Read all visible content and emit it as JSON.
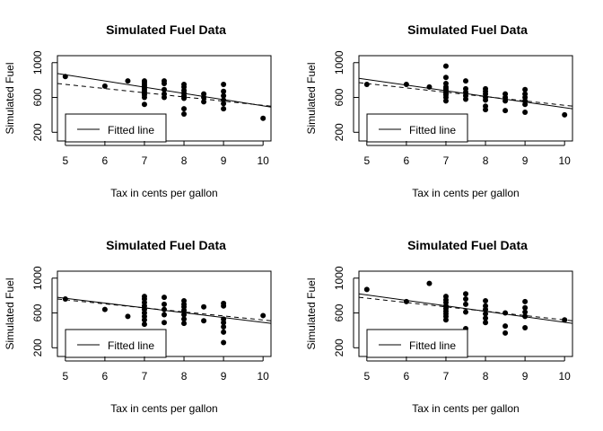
{
  "panels": [
    {
      "chart_data": {
        "type": "scatter",
        "title": "Simulated Fuel Data",
        "xlabel": "Tax in cents per gallon",
        "ylabel": "Simulated Fuel",
        "xlim": [
          4.8,
          10.2
        ],
        "ylim": [
          100,
          1080
        ],
        "xticks": [
          5,
          6,
          7,
          8,
          9,
          10
        ],
        "yticks": [
          200,
          600,
          1000
        ],
        "points": [
          [
            5,
            840
          ],
          [
            6,
            730
          ],
          [
            6.58,
            790
          ],
          [
            7,
            520
          ],
          [
            7,
            600
          ],
          [
            7,
            630
          ],
          [
            7,
            650
          ],
          [
            7,
            670
          ],
          [
            7,
            690
          ],
          [
            7,
            710
          ],
          [
            7,
            730
          ],
          [
            7,
            750
          ],
          [
            7,
            770
          ],
          [
            7,
            790
          ],
          [
            7.5,
            600
          ],
          [
            7.5,
            640
          ],
          [
            7.5,
            690
          ],
          [
            7.5,
            760
          ],
          [
            7.5,
            790
          ],
          [
            8,
            410
          ],
          [
            8,
            470
          ],
          [
            8,
            590
          ],
          [
            8,
            620
          ],
          [
            8,
            650
          ],
          [
            8,
            680
          ],
          [
            8,
            720
          ],
          [
            8,
            750
          ],
          [
            8.5,
            550
          ],
          [
            8.5,
            600
          ],
          [
            8.5,
            640
          ],
          [
            9,
            470
          ],
          [
            9,
            530
          ],
          [
            9,
            570
          ],
          [
            9,
            620
          ],
          [
            9,
            670
          ],
          [
            9,
            750
          ],
          [
            10,
            360
          ]
        ],
        "fitted_line": [
          [
            4.8,
            875
          ],
          [
            10.2,
            490
          ]
        ],
        "dashed_line": [
          [
            4.8,
            760
          ],
          [
            10.2,
            500
          ]
        ],
        "legend": {
          "label": "Fitted line",
          "position": "bottom-left"
        }
      }
    },
    {
      "chart_data": {
        "type": "scatter",
        "title": "Simulated Fuel Data",
        "xlabel": "Tax in cents per gallon",
        "ylabel": "Simulated Fuel",
        "xlim": [
          4.8,
          10.2
        ],
        "ylim": [
          100,
          1080
        ],
        "xticks": [
          5,
          6,
          7,
          8,
          9,
          10
        ],
        "yticks": [
          200,
          600,
          1000
        ],
        "points": [
          [
            5,
            750
          ],
          [
            6,
            750
          ],
          [
            6.58,
            720
          ],
          [
            7,
            560
          ],
          [
            7,
            600
          ],
          [
            7,
            630
          ],
          [
            7,
            650
          ],
          [
            7,
            680
          ],
          [
            7,
            700
          ],
          [
            7,
            720
          ],
          [
            7,
            760
          ],
          [
            7,
            830
          ],
          [
            7,
            960
          ],
          [
            7.5,
            580
          ],
          [
            7.5,
            620
          ],
          [
            7.5,
            660
          ],
          [
            7.5,
            700
          ],
          [
            7.5,
            790
          ],
          [
            8,
            460
          ],
          [
            8,
            500
          ],
          [
            8,
            570
          ],
          [
            8,
            600
          ],
          [
            8,
            640
          ],
          [
            8,
            670
          ],
          [
            8,
            700
          ],
          [
            8.5,
            450
          ],
          [
            8.5,
            560
          ],
          [
            8.5,
            600
          ],
          [
            8.5,
            640
          ],
          [
            9,
            430
          ],
          [
            9,
            520
          ],
          [
            9,
            560
          ],
          [
            9,
            600
          ],
          [
            9,
            640
          ],
          [
            9,
            690
          ],
          [
            10,
            400
          ]
        ],
        "fitted_line": [
          [
            4.8,
            820
          ],
          [
            10.2,
            470
          ]
        ],
        "dashed_line": [
          [
            4.8,
            770
          ],
          [
            10.2,
            500
          ]
        ],
        "legend": {
          "label": "Fitted line",
          "position": "bottom-left"
        }
      }
    },
    {
      "chart_data": {
        "type": "scatter",
        "title": "Simulated Fuel Data",
        "xlabel": "Tax in cents per gallon",
        "ylabel": "Simulated Fuel",
        "xlim": [
          4.8,
          10.2
        ],
        "ylim": [
          100,
          1080
        ],
        "xticks": [
          5,
          6,
          7,
          8,
          9,
          10
        ],
        "yticks": [
          200,
          600,
          1000
        ],
        "points": [
          [
            5,
            760
          ],
          [
            6,
            640
          ],
          [
            6.58,
            560
          ],
          [
            7,
            470
          ],
          [
            7,
            520
          ],
          [
            7,
            560
          ],
          [
            7,
            600
          ],
          [
            7,
            640
          ],
          [
            7,
            680
          ],
          [
            7,
            720
          ],
          [
            7,
            760
          ],
          [
            7,
            790
          ],
          [
            7.5,
            490
          ],
          [
            7.5,
            580
          ],
          [
            7.5,
            640
          ],
          [
            7.5,
            700
          ],
          [
            7.5,
            780
          ],
          [
            8,
            480
          ],
          [
            8,
            530
          ],
          [
            8,
            580
          ],
          [
            8,
            630
          ],
          [
            8,
            670
          ],
          [
            8,
            700
          ],
          [
            8,
            740
          ],
          [
            8.5,
            510
          ],
          [
            8.5,
            670
          ],
          [
            9,
            260
          ],
          [
            9,
            380
          ],
          [
            9,
            440
          ],
          [
            9,
            490
          ],
          [
            9,
            530
          ],
          [
            9,
            680
          ],
          [
            9,
            710
          ],
          [
            10,
            570
          ]
        ],
        "fitted_line": [
          [
            4.8,
            780
          ],
          [
            10.2,
            480
          ]
        ],
        "dashed_line": [
          [
            4.8,
            760
          ],
          [
            10.2,
            510
          ]
        ],
        "legend": {
          "label": "Fitted line",
          "position": "bottom-left"
        }
      }
    },
    {
      "chart_data": {
        "type": "scatter",
        "title": "Simulated Fuel Data",
        "xlabel": "Tax in cents per gallon",
        "ylabel": "Simulated Fuel",
        "xlim": [
          4.8,
          10.2
        ],
        "ylim": [
          100,
          1080
        ],
        "xticks": [
          5,
          6,
          7,
          8,
          9,
          10
        ],
        "yticks": [
          200,
          600,
          1000
        ],
        "points": [
          [
            5,
            870
          ],
          [
            6,
            730
          ],
          [
            6.58,
            940
          ],
          [
            7,
            520
          ],
          [
            7,
            560
          ],
          [
            7,
            590
          ],
          [
            7,
            620
          ],
          [
            7,
            650
          ],
          [
            7,
            680
          ],
          [
            7,
            720
          ],
          [
            7,
            750
          ],
          [
            7,
            790
          ],
          [
            7.5,
            420
          ],
          [
            7.5,
            610
          ],
          [
            7.5,
            700
          ],
          [
            7.5,
            760
          ],
          [
            7.5,
            820
          ],
          [
            8,
            490
          ],
          [
            8,
            540
          ],
          [
            8,
            590
          ],
          [
            8,
            640
          ],
          [
            8,
            680
          ],
          [
            8,
            740
          ],
          [
            8.5,
            370
          ],
          [
            8.5,
            450
          ],
          [
            8.5,
            600
          ],
          [
            9,
            430
          ],
          [
            9,
            560
          ],
          [
            9,
            610
          ],
          [
            9,
            660
          ],
          [
            9,
            730
          ],
          [
            10,
            520
          ]
        ],
        "fitted_line": [
          [
            4.8,
            820
          ],
          [
            10.2,
            480
          ]
        ],
        "dashed_line": [
          [
            4.8,
            780
          ],
          [
            10.2,
            510
          ]
        ],
        "legend": {
          "label": "Fitted line",
          "position": "bottom-left"
        }
      }
    }
  ]
}
